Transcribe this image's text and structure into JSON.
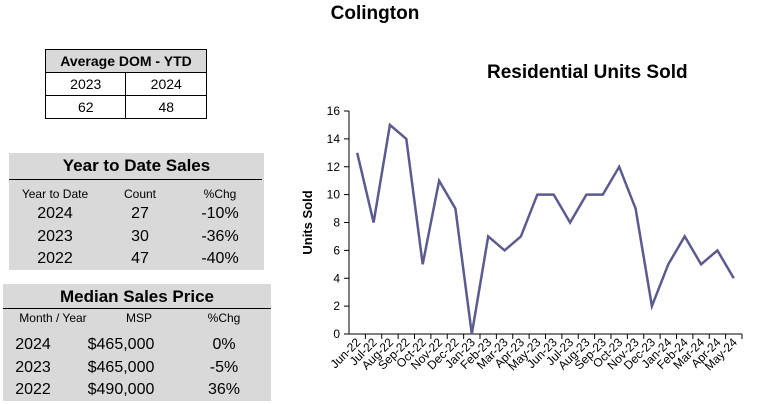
{
  "page": {
    "title": "Colington"
  },
  "dom_table": {
    "title": "Average DOM - YTD",
    "years": [
      "2023",
      "2024"
    ],
    "values": [
      "62",
      "48"
    ]
  },
  "ytd_sales": {
    "title": "Year to Date Sales",
    "headers": [
      "Year to Date",
      "Count",
      "%Chg"
    ],
    "rows": [
      {
        "year": "2024",
        "count": "27",
        "chg": "-10%"
      },
      {
        "year": "2023",
        "count": "30",
        "chg": "-36%"
      },
      {
        "year": "2022",
        "count": "47",
        "chg": "-40%"
      }
    ]
  },
  "median_price": {
    "title": "Median Sales Price",
    "headers": [
      "Month / Year",
      "MSP",
      "%Chg"
    ],
    "rows": [
      {
        "year": "2024",
        "msp": "$465,000",
        "chg": "0%"
      },
      {
        "year": "2023",
        "msp": "$465,000",
        "chg": "-5%"
      },
      {
        "year": "2022",
        "msp": "$490,000",
        "chg": "36%"
      }
    ]
  },
  "chart_data": {
    "type": "line",
    "title": "Residential Units Sold",
    "xlabel": "",
    "ylabel": "Units Sold",
    "ylim": [
      0,
      16
    ],
    "yticks": [
      0,
      2,
      4,
      6,
      8,
      10,
      12,
      14,
      16
    ],
    "grid": false,
    "line_color": "#5b5b8f",
    "categories": [
      "Jun-22",
      "Jul-22",
      "Aug-22",
      "Sep-22",
      "Oct-22",
      "Nov-22",
      "Dec-22",
      "Jan-23",
      "Feb-23",
      "Mar-23",
      "Apr-23",
      "May-23",
      "Jun-23",
      "Jul-23",
      "Aug-23",
      "Sep-23",
      "Oct-23",
      "Nov-23",
      "Dec-23",
      "Jan-24",
      "Feb-24",
      "Mar-24",
      "Apr-24",
      "May-24"
    ],
    "values": [
      13,
      8,
      15,
      14,
      5,
      11,
      9,
      0,
      7,
      6,
      7,
      10,
      10,
      8,
      10,
      10,
      12,
      9,
      2,
      5,
      7,
      5,
      6,
      4
    ]
  }
}
